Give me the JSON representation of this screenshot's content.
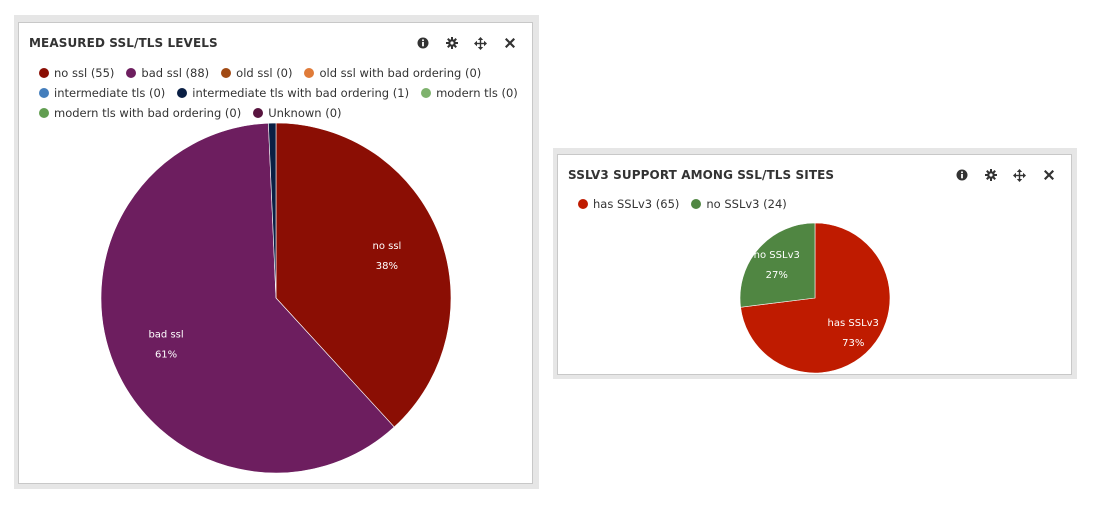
{
  "panels": [
    {
      "title": "MEASURED SSL/TLS LEVELS",
      "legend_rows": [
        [
          0,
          1,
          2,
          3
        ],
        [
          4,
          5,
          6
        ],
        [
          7,
          8
        ]
      ]
    },
    {
      "title": "SSLV3 SUPPORT AMONG SSL/TLS SITES",
      "legend_rows": [
        [
          0,
          1
        ]
      ]
    }
  ],
  "toolbar_icons": [
    "info-icon",
    "gear-icon",
    "move-icon",
    "close-icon"
  ],
  "chart_data": [
    {
      "type": "pie",
      "title": "MEASURED SSL/TLS LEVELS",
      "legend_position": "top-left",
      "slices": [
        {
          "label": "no ssl",
          "legend": "no ssl (55)",
          "value": 55,
          "color": "#8b0e04",
          "pct_label": "38%"
        },
        {
          "label": "bad ssl",
          "legend": "bad ssl (88)",
          "value": 88,
          "color": "#6d1e5f",
          "pct_label": "61%"
        },
        {
          "label": "old ssl",
          "legend": "old ssl (0)",
          "value": 0,
          "color": "#a14a14"
        },
        {
          "label": "old ssl with bad ordering",
          "legend": "old ssl with bad ordering (0)",
          "value": 0,
          "color": "#e07b39"
        },
        {
          "label": "intermediate tls",
          "legend": "intermediate tls (0)",
          "value": 0,
          "color": "#447ebc"
        },
        {
          "label": "intermediate tls with bad ordering",
          "legend": "intermediate tls with bad ordering (1)",
          "value": 1,
          "color": "#0a1f44"
        },
        {
          "label": "modern tls",
          "legend": "modern tls (0)",
          "value": 0,
          "color": "#7eb26d"
        },
        {
          "label": "modern tls with bad ordering",
          "legend": "modern tls with bad ordering (0)",
          "value": 0,
          "color": "#629e51"
        },
        {
          "label": "Unknown",
          "legend": "Unknown (0)",
          "value": 0,
          "color": "#58143f"
        }
      ]
    },
    {
      "type": "pie",
      "title": "SSLV3 SUPPORT AMONG SSL/TLS SITES",
      "legend_position": "top-left",
      "slices": [
        {
          "label": "has SSLv3",
          "legend": "has SSLv3 (65)",
          "value": 65,
          "color": "#bf1b00",
          "pct_label": "73%"
        },
        {
          "label": "no SSLv3",
          "legend": "no SSLv3 (24)",
          "value": 24,
          "color": "#508642",
          "pct_label": "27%"
        }
      ]
    }
  ]
}
